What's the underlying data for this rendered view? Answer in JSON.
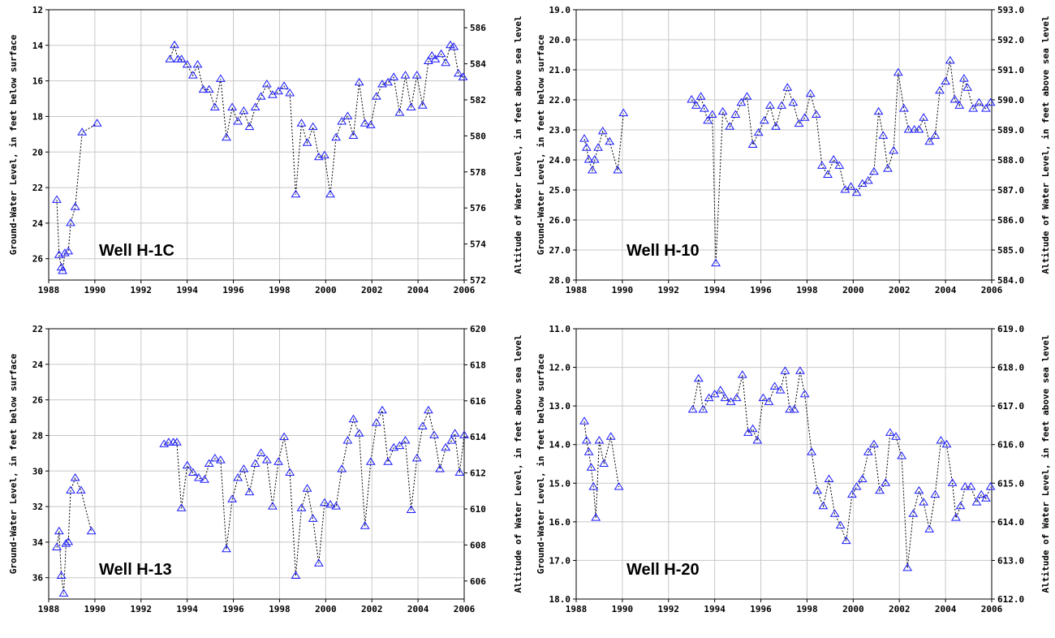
{
  "chart_data": [
    {
      "type": "line",
      "title": "Well H-1C",
      "ylabel": "Ground-Water Level, in feet below surface",
      "y2label": "Altitude of Water Level, in feet above sea level",
      "xlim": [
        1988,
        2006
      ],
      "ylim": [
        27.2,
        12.0
      ],
      "y2lim": [
        572,
        587
      ],
      "y_inverted": true,
      "x_ticks": [
        1988,
        1990,
        1992,
        1994,
        1996,
        1998,
        2000,
        2002,
        2004,
        2006
      ],
      "x_tick_labels": [
        "1988",
        "1990",
        "1992",
        "1994",
        "1996",
        "1998",
        "2000",
        "2002",
        "2004",
        "2006"
      ],
      "y_ticks": [
        12,
        14,
        16,
        18,
        20,
        22,
        24,
        26
      ],
      "y_tick_labels": [
        "12",
        "14",
        "16",
        "18",
        "20",
        "22",
        "24",
        "26"
      ],
      "y2_ticks": [
        572,
        574,
        576,
        578,
        580,
        582,
        584,
        586
      ],
      "y2_tick_labels": [
        "572",
        "574",
        "576",
        "578",
        "580",
        "582",
        "584",
        "586"
      ],
      "grid": true,
      "marker": "triangle",
      "series": [
        {
          "segments": [
            {
              "x": [
                1988.35,
                1988.45,
                1988.55,
                1988.6,
                1988.7,
                1988.85,
                1988.95,
                1989.15,
                1989.45,
                1990.1
              ],
              "y": [
                22.7,
                25.8,
                26.5,
                26.7,
                25.7,
                25.6,
                24.0,
                23.1,
                18.9,
                18.4
              ]
            },
            {
              "x": [
                1993.25,
                1993.45,
                1993.6,
                1993.75,
                1994.0,
                1994.25,
                1994.45,
                1994.7,
                1994.95,
                1995.2,
                1995.45,
                1995.7,
                1995.95,
                1996.2,
                1996.45,
                1996.7,
                1996.95,
                1997.2,
                1997.45,
                1997.7,
                1997.95,
                1998.2,
                1998.45,
                1998.7,
                1998.95,
                1999.2,
                1999.45,
                1999.7,
                1999.95,
                2000.2,
                2000.45,
                2000.7,
                2000.95,
                2001.2,
                2001.45,
                2001.7,
                2001.95,
                2002.2,
                2002.45,
                2002.7,
                2002.95,
                2003.2,
                2003.45,
                2003.7,
                2003.95,
                2004.2,
                2004.45,
                2004.6,
                2004.75,
                2005.0,
                2005.2,
                2005.4,
                2005.55,
                2005.75,
                2005.95
              ],
              "y": [
                14.8,
                14.0,
                14.8,
                14.8,
                15.1,
                15.7,
                15.1,
                16.5,
                16.5,
                17.5,
                15.9,
                19.2,
                17.5,
                18.3,
                17.7,
                18.6,
                17.5,
                16.9,
                16.2,
                16.8,
                16.6,
                16.3,
                16.7,
                22.4,
                18.4,
                19.5,
                18.6,
                20.3,
                20.2,
                22.4,
                19.2,
                18.3,
                18.0,
                19.1,
                16.1,
                18.4,
                18.5,
                16.9,
                16.2,
                16.1,
                15.8,
                17.8,
                15.7,
                17.5,
                15.7,
                17.4,
                14.9,
                14.6,
                14.8,
                14.5,
                15.0,
                14.0,
                14.1,
                15.6,
                15.8
              ]
            }
          ]
        }
      ]
    },
    {
      "type": "line",
      "title": "Well H-10",
      "ylabel": "Ground-Water Level, in feet below surface",
      "y2label": "Altitude of Water Level, in feet above sea level",
      "xlim": [
        1988,
        2006
      ],
      "ylim": [
        28.0,
        19.0
      ],
      "y2lim": [
        584.0,
        593.0
      ],
      "y_inverted": true,
      "x_ticks": [
        1988,
        1990,
        1992,
        1994,
        1996,
        1998,
        2000,
        2002,
        2004,
        2006
      ],
      "x_tick_labels": [
        "1988",
        "1990",
        "1992",
        "1994",
        "1996",
        "1998",
        "2000",
        "2002",
        "2004",
        "2006"
      ],
      "y_ticks": [
        19,
        20,
        21,
        22,
        23,
        24,
        25,
        26,
        27,
        28
      ],
      "y_tick_labels": [
        "19.0",
        "20.0",
        "21.0",
        "22.0",
        "23.0",
        "24.0",
        "25.0",
        "26.0",
        "27.0",
        "28.0"
      ],
      "y2_ticks": [
        584,
        585,
        586,
        587,
        588,
        589,
        590,
        591,
        592,
        593
      ],
      "y2_tick_labels": [
        "584.0",
        "585.0",
        "586.0",
        "587.0",
        "588.0",
        "589.0",
        "590.0",
        "591.0",
        "592.0",
        "593.0"
      ],
      "grid": true,
      "marker": "triangle",
      "series": [
        {
          "segments": [
            {
              "x": [
                1988.35,
                1988.45,
                1988.55,
                1988.7,
                1988.8,
                1988.95,
                1989.15,
                1989.45,
                1989.8,
                1990.05
              ],
              "y": [
                23.3,
                23.6,
                24.0,
                24.35,
                24.0,
                23.6,
                23.05,
                23.4,
                24.35,
                22.45
              ]
            },
            {
              "x": [
                1993.0,
                1993.2,
                1993.4,
                1993.55,
                1993.7,
                1993.9,
                1994.05,
                1994.35,
                1994.65,
                1994.9,
                1995.15,
                1995.4,
                1995.65,
                1995.9,
                1996.15,
                1996.4,
                1996.65,
                1996.9,
                1997.15,
                1997.4,
                1997.65,
                1997.9,
                1998.15,
                1998.4,
                1998.65,
                1998.9,
                1999.15,
                1999.4,
                1999.65,
                1999.9,
                2000.15,
                2000.4,
                2000.65,
                2000.9,
                2001.1,
                2001.3,
                2001.5,
                2001.75,
                2001.95,
                2002.2,
                2002.4,
                2002.65,
                2002.85,
                2003.05,
                2003.3,
                2003.55,
                2003.75,
                2004.0,
                2004.2,
                2004.4,
                2004.6,
                2004.8,
                2004.95,
                2005.2,
                2005.45,
                2005.75,
                2005.95
              ],
              "y": [
                22.0,
                22.2,
                21.9,
                22.3,
                22.7,
                22.5,
                27.45,
                22.4,
                22.9,
                22.5,
                22.1,
                21.9,
                23.5,
                23.1,
                22.7,
                22.2,
                22.9,
                22.2,
                21.6,
                22.1,
                22.8,
                22.6,
                21.8,
                22.5,
                24.2,
                24.5,
                24.0,
                24.2,
                25.0,
                24.9,
                25.1,
                24.8,
                24.7,
                24.4,
                22.4,
                23.2,
                24.3,
                23.7,
                21.1,
                22.3,
                23.0,
                23.0,
                23.0,
                22.6,
                23.4,
                23.2,
                21.7,
                21.4,
                20.7,
                22.0,
                22.2,
                21.3,
                21.6,
                22.3,
                22.1,
                22.3,
                22.1
              ]
            }
          ]
        }
      ]
    },
    {
      "type": "line",
      "title": "Well H-13",
      "ylabel": "Ground-Water Level, in feet below surface",
      "y2label": "Altitude of Water Level, in feet above sea level",
      "xlim": [
        1988,
        2006
      ],
      "ylim": [
        37.2,
        22.0
      ],
      "y2lim": [
        605,
        620
      ],
      "y_inverted": true,
      "x_ticks": [
        1988,
        1990,
        1992,
        1994,
        1996,
        1998,
        2000,
        2002,
        2004,
        2006
      ],
      "x_tick_labels": [
        "1988",
        "1990",
        "1992",
        "1994",
        "1996",
        "1998",
        "2000",
        "2002",
        "2004",
        "2006"
      ],
      "y_ticks": [
        22,
        24,
        26,
        28,
        30,
        32,
        34,
        36
      ],
      "y_tick_labels": [
        "22",
        "24",
        "26",
        "28",
        "30",
        "32",
        "34",
        "36"
      ],
      "y2_ticks": [
        606,
        608,
        610,
        612,
        614,
        616,
        618,
        620
      ],
      "y2_tick_labels": [
        "606",
        "608",
        "610",
        "612",
        "614",
        "616",
        "618",
        "620"
      ],
      "grid": true,
      "marker": "triangle",
      "series": [
        {
          "segments": [
            {
              "x": [
                1988.35,
                1988.45,
                1988.55,
                1988.65,
                1988.75,
                1988.85,
                1988.95,
                1989.15,
                1989.4,
                1989.85
              ],
              "y": [
                34.3,
                33.4,
                35.9,
                36.9,
                34.1,
                34.0,
                31.1,
                30.4,
                31.1,
                33.4
              ]
            },
            {
              "x": [
                1993.0,
                1993.2,
                1993.4,
                1993.55,
                1993.75,
                1994.0,
                1994.25,
                1994.5,
                1994.75,
                1994.95,
                1995.2,
                1995.45,
                1995.7,
                1995.95,
                1996.2,
                1996.45,
                1996.7,
                1996.95,
                1997.2,
                1997.45,
                1997.7,
                1997.95,
                1998.2,
                1998.45,
                1998.7,
                1998.95,
                1999.2,
                1999.45,
                1999.7,
                1999.95,
                2000.2,
                2000.45,
                2000.7,
                2000.95,
                2001.2,
                2001.45,
                2001.7,
                2001.95,
                2002.2,
                2002.45,
                2002.7,
                2002.95,
                2003.2,
                2003.45,
                2003.7,
                2003.95,
                2004.2,
                2004.45,
                2004.7,
                2004.95,
                2005.2,
                2005.45,
                2005.6,
                2005.8,
                2006.0
              ],
              "y": [
                28.5,
                28.4,
                28.4,
                28.4,
                32.1,
                29.7,
                30.1,
                30.4,
                30.5,
                29.6,
                29.3,
                29.4,
                34.4,
                31.6,
                30.4,
                29.9,
                31.2,
                29.6,
                29.0,
                29.4,
                32.0,
                29.5,
                28.1,
                30.1,
                35.9,
                32.1,
                31.0,
                32.7,
                35.2,
                31.8,
                31.9,
                32.0,
                29.9,
                28.3,
                27.1,
                27.9,
                33.1,
                29.5,
                27.3,
                26.6,
                29.5,
                28.7,
                28.6,
                28.3,
                32.2,
                29.3,
                27.5,
                26.6,
                28.0,
                29.9,
                28.7,
                28.3,
                27.9,
                30.1,
                28.0
              ]
            }
          ]
        }
      ]
    },
    {
      "type": "line",
      "title": "Well H-20",
      "ylabel": "Ground-Water Level, in feet below surface",
      "y2label": "Altitude of Water Level, in feet above sea level",
      "xlim": [
        1988,
        2006
      ],
      "ylim": [
        18.0,
        11.0
      ],
      "y2lim": [
        612.0,
        619.0
      ],
      "y_inverted": true,
      "x_ticks": [
        1988,
        1990,
        1992,
        1994,
        1996,
        1998,
        2000,
        2002,
        2004,
        2006
      ],
      "x_tick_labels": [
        "1988",
        "1990",
        "1992",
        "1994",
        "1996",
        "1998",
        "2000",
        "2002",
        "2004",
        "2006"
      ],
      "y_ticks": [
        11,
        12,
        13,
        14,
        15,
        16,
        17,
        18
      ],
      "y_tick_labels": [
        "11.0",
        "12.0",
        "13.0",
        "14.0",
        "15.0",
        "16.0",
        "17.0",
        "18.0"
      ],
      "y2_ticks": [
        612,
        613,
        614,
        615,
        616,
        617,
        618,
        619
      ],
      "y2_tick_labels": [
        "612.0",
        "613.0",
        "614.0",
        "615.0",
        "616.0",
        "617.0",
        "618.0",
        "619.0"
      ],
      "grid": true,
      "marker": "triangle",
      "series": [
        {
          "segments": [
            {
              "x": [
                1988.35,
                1988.45,
                1988.55,
                1988.65,
                1988.75,
                1988.85,
                1989.0,
                1989.2,
                1989.5,
                1989.85
              ],
              "y": [
                13.4,
                13.9,
                14.2,
                14.6,
                15.1,
                15.9,
                13.9,
                14.5,
                13.8,
                15.1
              ]
            },
            {
              "x": [
                1993.05,
                1993.3,
                1993.5,
                1993.75,
                1994.0,
                1994.25,
                1994.45,
                1994.7,
                1994.95,
                1995.2,
                1995.45,
                1995.65,
                1995.85,
                1996.1,
                1996.35,
                1996.6,
                1996.85,
                1997.05,
                1997.25,
                1997.45,
                1997.7,
                1997.9,
                1998.2,
                1998.45,
                1998.7,
                1998.95,
                1999.2,
                1999.45,
                1999.7,
                1999.95,
                2000.15,
                2000.4,
                2000.65,
                2000.9,
                2001.15,
                2001.4,
                2001.6,
                2001.85,
                2002.1,
                2002.35,
                2002.6,
                2002.85,
                2003.05,
                2003.3,
                2003.55,
                2003.8,
                2004.05,
                2004.3,
                2004.45,
                2004.65,
                2004.85,
                2005.1,
                2005.35,
                2005.55,
                2005.75,
                2005.95
              ],
              "y": [
                13.1,
                12.3,
                13.1,
                12.8,
                12.7,
                12.6,
                12.8,
                12.9,
                12.8,
                12.2,
                13.7,
                13.6,
                13.9,
                12.8,
                12.9,
                12.5,
                12.6,
                12.1,
                13.1,
                13.1,
                12.1,
                12.7,
                14.2,
                15.2,
                15.6,
                14.9,
                15.8,
                16.1,
                16.5,
                15.3,
                15.1,
                14.9,
                14.2,
                14.0,
                15.2,
                15.0,
                13.7,
                13.8,
                14.3,
                17.2,
                15.8,
                15.2,
                15.5,
                16.2,
                15.3,
                13.9,
                14.0,
                15.0,
                15.9,
                15.6,
                15.1,
                15.1,
                15.5,
                15.3,
                15.4,
                15.1
              ]
            }
          ]
        }
      ]
    }
  ]
}
